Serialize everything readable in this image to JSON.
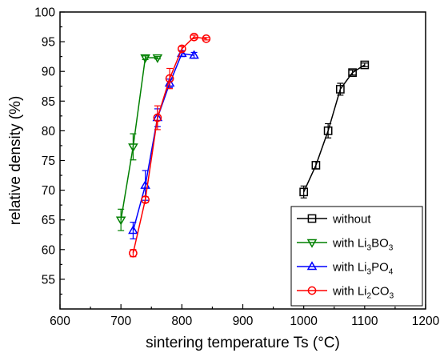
{
  "chart_data": {
    "type": "scatter",
    "xlabel": "sintering temperature Ts (°C)",
    "ylabel": "relative density (%)",
    "xlim": [
      600,
      1200
    ],
    "ylim": [
      50,
      100
    ],
    "xticks": [
      600,
      700,
      800,
      900,
      1000,
      1100,
      1200
    ],
    "yticks": [
      55,
      60,
      65,
      70,
      75,
      80,
      85,
      90,
      95,
      100
    ],
    "grid": false,
    "legend_position": "bottom-right",
    "series": [
      {
        "name": "without",
        "legend_label": "without",
        "legend_sub": "",
        "legend_tail": "",
        "color": "#000000",
        "marker": "square",
        "x": [
          1000,
          1020,
          1040,
          1060,
          1080,
          1100
        ],
        "y": [
          69.7,
          74.2,
          80.0,
          87.0,
          89.8,
          91.1
        ],
        "err": [
          1.0,
          0.6,
          1.2,
          1.0,
          0.4,
          0.3
        ]
      },
      {
        "name": "with Li3BO3",
        "legend_label": "with Li",
        "legend_sub": "3",
        "legend_tail": "BO",
        "legend_sub2": "3",
        "color": "#008000",
        "marker": "triangle-down",
        "x": [
          700,
          720,
          740,
          760
        ],
        "y": [
          65.0,
          77.3,
          92.3,
          92.3
        ],
        "err": [
          1.8,
          2.2,
          0.3,
          0.2
        ]
      },
      {
        "name": "with Li3PO4",
        "legend_label": "with Li",
        "legend_sub": "3",
        "legend_tail": "PO",
        "legend_sub2": "4",
        "color": "#0000ff",
        "marker": "triangle-up",
        "x": [
          720,
          740,
          760,
          780,
          800,
          820
        ],
        "y": [
          63.2,
          70.8,
          82.2,
          88.0,
          93.0,
          92.7
        ],
        "err": [
          1.4,
          2.5,
          1.5,
          0.7,
          0.5,
          0.5
        ]
      },
      {
        "name": "with Li2CO3",
        "legend_label": "with Li",
        "legend_sub": "2",
        "legend_tail": "CO",
        "legend_sub2": "3",
        "color": "#ff0000",
        "marker": "circle",
        "x": [
          720,
          740,
          760,
          780,
          800,
          820,
          840
        ],
        "y": [
          59.4,
          68.4,
          82.2,
          88.8,
          93.8,
          95.8,
          95.5
        ],
        "err": [
          0.6,
          0.5,
          2.0,
          1.7,
          0.4,
          0.3,
          0.2
        ]
      }
    ]
  }
}
